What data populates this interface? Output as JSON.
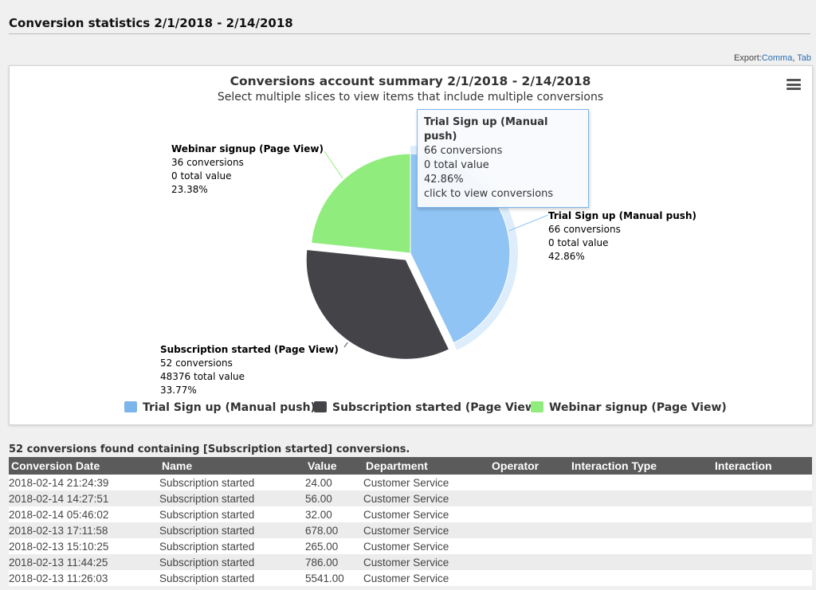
{
  "header": {
    "title": "Conversion statistics 2/1/2018 - 2/14/2018"
  },
  "export": {
    "label": "Export:",
    "comma": "Comma",
    "tab": "Tab"
  },
  "chart_data": {
    "type": "pie",
    "title": "Conversions account summary 2/1/2018 - 2/14/2018",
    "subtitle": "Select multiple slices to view items that include multiple conversions",
    "slices": [
      {
        "name": "Trial Sign up (Manual push)",
        "conversions": "66 conversions",
        "total_value": "0 total value",
        "percent": "42.86%",
        "value": 66,
        "color": "#90c4f5",
        "hovered": true,
        "sliced": false
      },
      {
        "name": "Subscription started (Page View)",
        "conversions": "52 conversions",
        "total_value": "48376 total value",
        "percent": "33.77%",
        "value": 52,
        "color": "#434348",
        "hovered": false,
        "sliced": true
      },
      {
        "name": "Webinar signup (Page View)",
        "conversions": "36 conversions",
        "total_value": "0 total value",
        "percent": "23.38%",
        "value": 36,
        "color": "#90ed7d",
        "hovered": false,
        "sliced": false
      }
    ],
    "legend_colors": [
      "#7cb5ec",
      "#434348",
      "#90ed7d"
    ],
    "legend_position": "bottom-center"
  },
  "tooltip": {
    "title": "Trial Sign up (Manual push)",
    "conversions": "66 conversions",
    "total_value": "0 total value",
    "percent": "42.86%",
    "action": "click to view conversions"
  },
  "results": {
    "summary": "52 conversions found containing [Subscription started] conversions.",
    "columns": [
      "Conversion Date",
      "Name",
      "Value",
      "Department",
      "Operator",
      "Interaction Type",
      "Interaction"
    ],
    "rows": [
      [
        "2018-02-14 21:24:39",
        "Subscription started",
        "24.00",
        "Customer Service",
        "",
        "",
        ""
      ],
      [
        "2018-02-14 14:27:51",
        "Subscription started",
        "56.00",
        "Customer Service",
        "",
        "",
        ""
      ],
      [
        "2018-02-14 05:46:02",
        "Subscription started",
        "32.00",
        "Customer Service",
        "",
        "",
        ""
      ],
      [
        "2018-02-13 17:11:58",
        "Subscription started",
        "678.00",
        "Customer Service",
        "",
        "",
        ""
      ],
      [
        "2018-02-13 15:10:25",
        "Subscription started",
        "265.00",
        "Customer Service",
        "",
        "",
        ""
      ],
      [
        "2018-02-13 11:44:25",
        "Subscription started",
        "786.00",
        "Customer Service",
        "",
        "",
        ""
      ],
      [
        "2018-02-13 11:26:03",
        "Subscription started",
        "5541.00",
        "Customer Service",
        "",
        "",
        ""
      ]
    ]
  },
  "icons": {
    "chart_menu": "hamburger-menu-icon"
  }
}
